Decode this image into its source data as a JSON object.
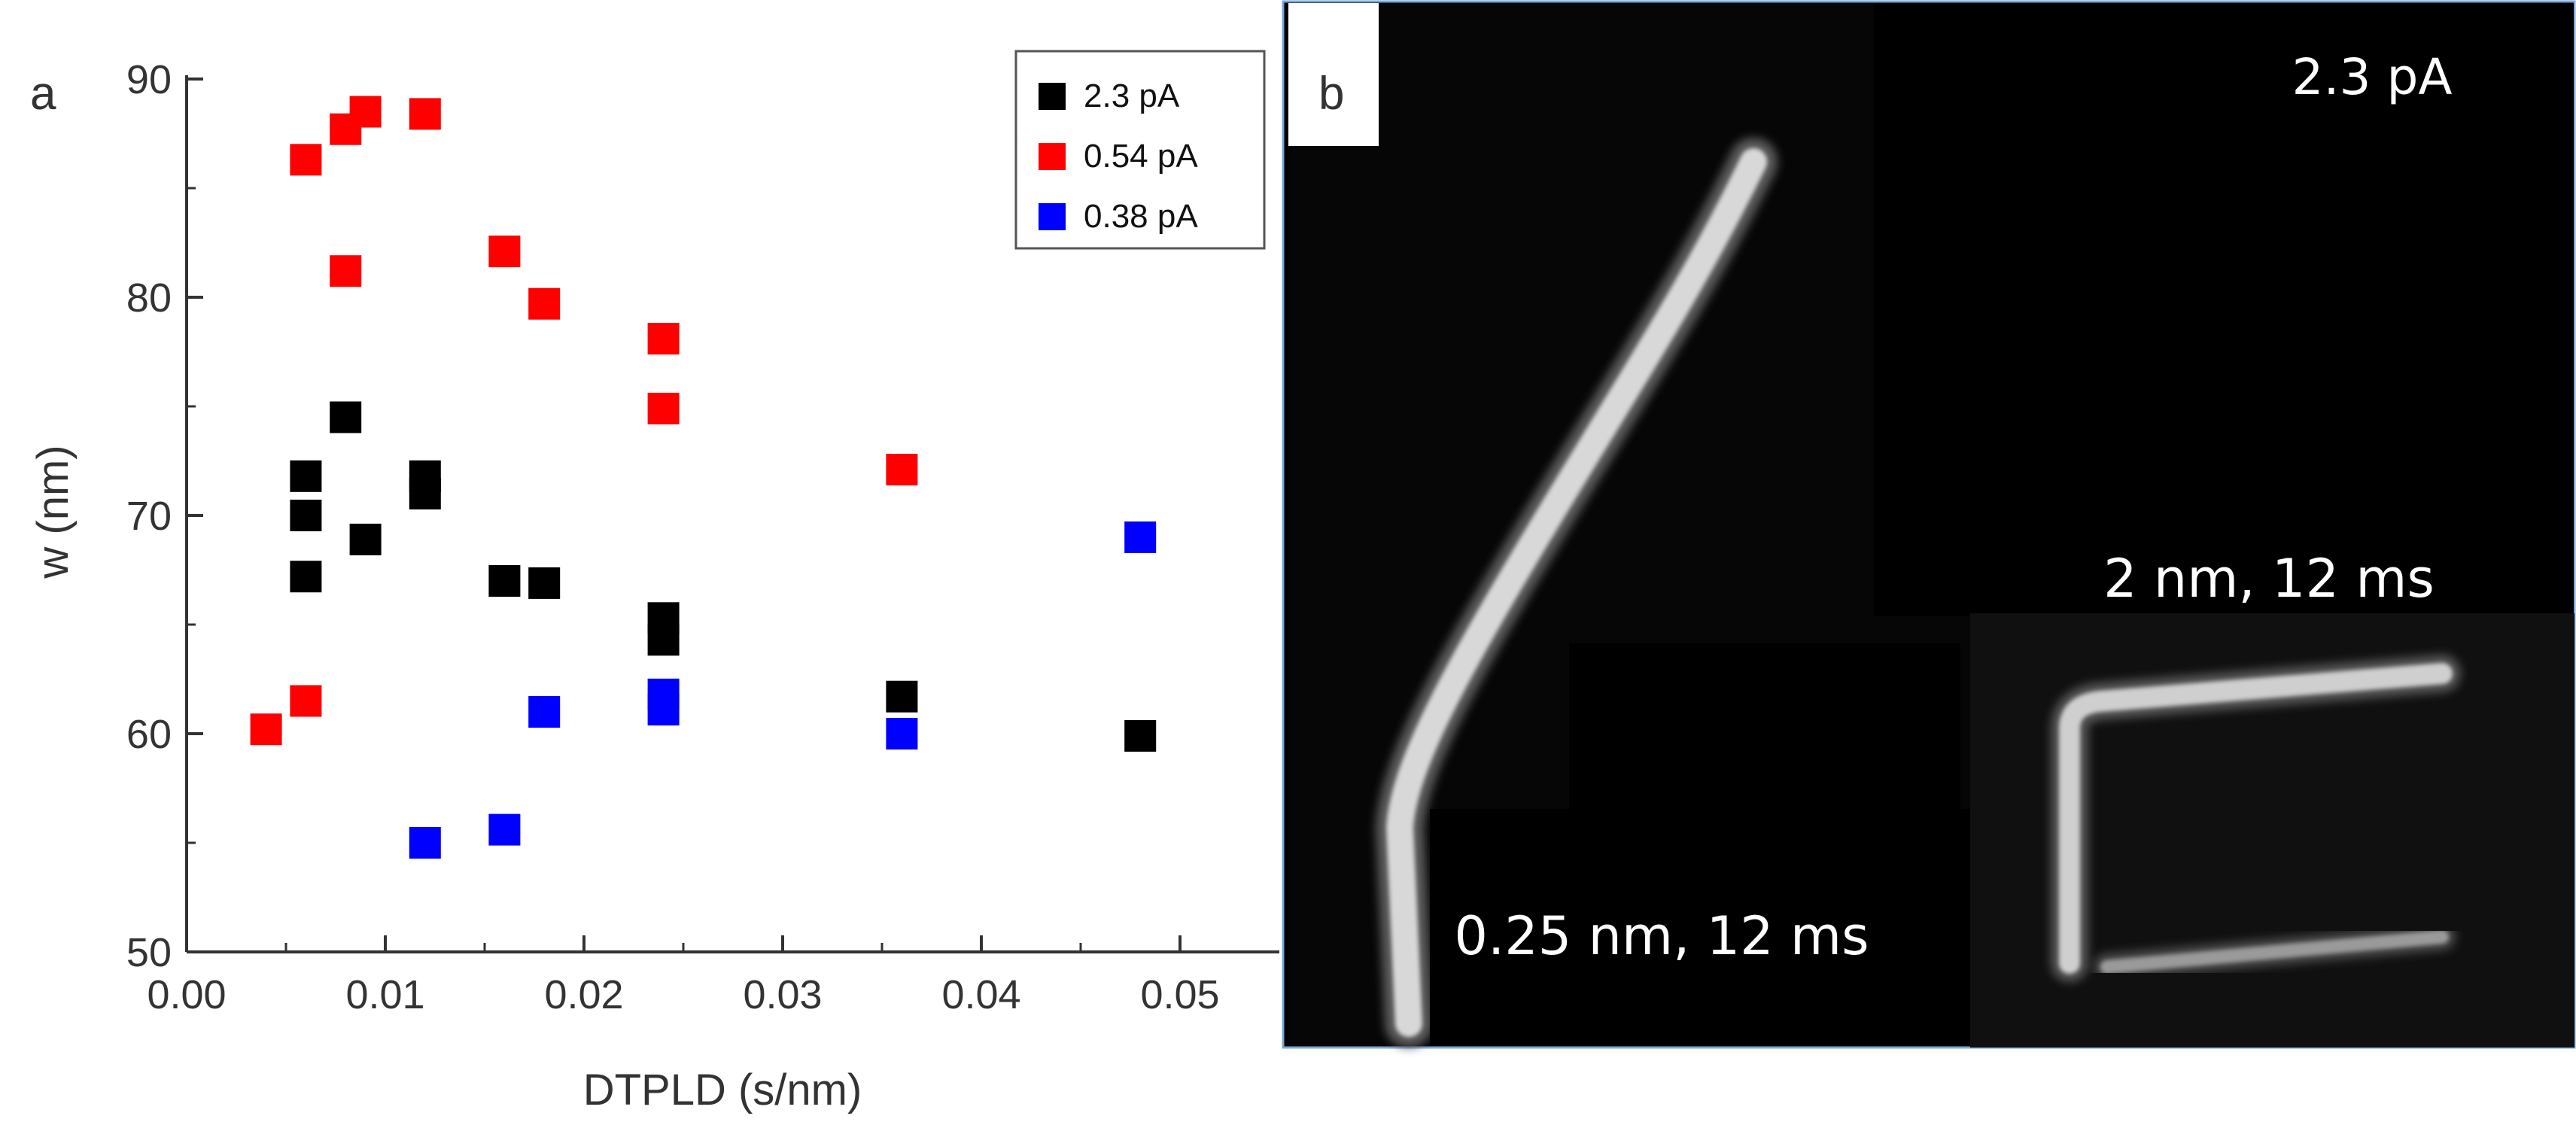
{
  "panel_a": {
    "label": "a",
    "chart_data": {
      "type": "scatter",
      "xlabel": "DTPLD (s/nm)",
      "ylabel": "w (nm)",
      "xlim": [
        0.0,
        0.055
      ],
      "ylim": [
        50,
        90
      ],
      "x_ticks": [
        "0.00",
        "0.01",
        "0.02",
        "0.03",
        "0.04",
        "0.05"
      ],
      "y_ticks": [
        "50",
        "60",
        "70",
        "80",
        "90"
      ],
      "grid": false,
      "legend_position": "top-right",
      "series": [
        {
          "name": "2.3 pA",
          "color": "#000000",
          "points": [
            [
              0.006,
              71.8
            ],
            [
              0.006,
              70.0
            ],
            [
              0.006,
              67.2
            ],
            [
              0.008,
              74.5
            ],
            [
              0.009,
              68.9
            ],
            [
              0.012,
              71.8
            ],
            [
              0.012,
              71.0
            ],
            [
              0.016,
              67.0
            ],
            [
              0.018,
              66.9
            ],
            [
              0.024,
              65.3
            ],
            [
              0.024,
              64.3
            ],
            [
              0.036,
              61.7
            ],
            [
              0.048,
              59.9
            ]
          ]
        },
        {
          "name": "0.54 pA",
          "color": "#ff0000",
          "points": [
            [
              0.004,
              60.2
            ],
            [
              0.006,
              61.5
            ],
            [
              0.006,
              86.3
            ],
            [
              0.008,
              87.7
            ],
            [
              0.008,
              81.2
            ],
            [
              0.009,
              88.5
            ],
            [
              0.012,
              88.4
            ],
            [
              0.016,
              82.1
            ],
            [
              0.018,
              79.7
            ],
            [
              0.024,
              78.1
            ],
            [
              0.024,
              74.9
            ],
            [
              0.036,
              72.1
            ]
          ]
        },
        {
          "name": "0.38 pA",
          "color": "#0000ff",
          "points": [
            [
              0.012,
              55.0
            ],
            [
              0.016,
              55.6
            ],
            [
              0.018,
              61.0
            ],
            [
              0.024,
              61.8
            ],
            [
              0.024,
              61.1
            ],
            [
              0.036,
              60.0
            ],
            [
              0.048,
              69.0
            ]
          ]
        }
      ]
    }
  },
  "panel_b": {
    "label": "b",
    "current_label": "2.3 pA",
    "left_caption": "0.25 nm, 12 ms",
    "right_caption": "2 nm, 12 ms"
  }
}
